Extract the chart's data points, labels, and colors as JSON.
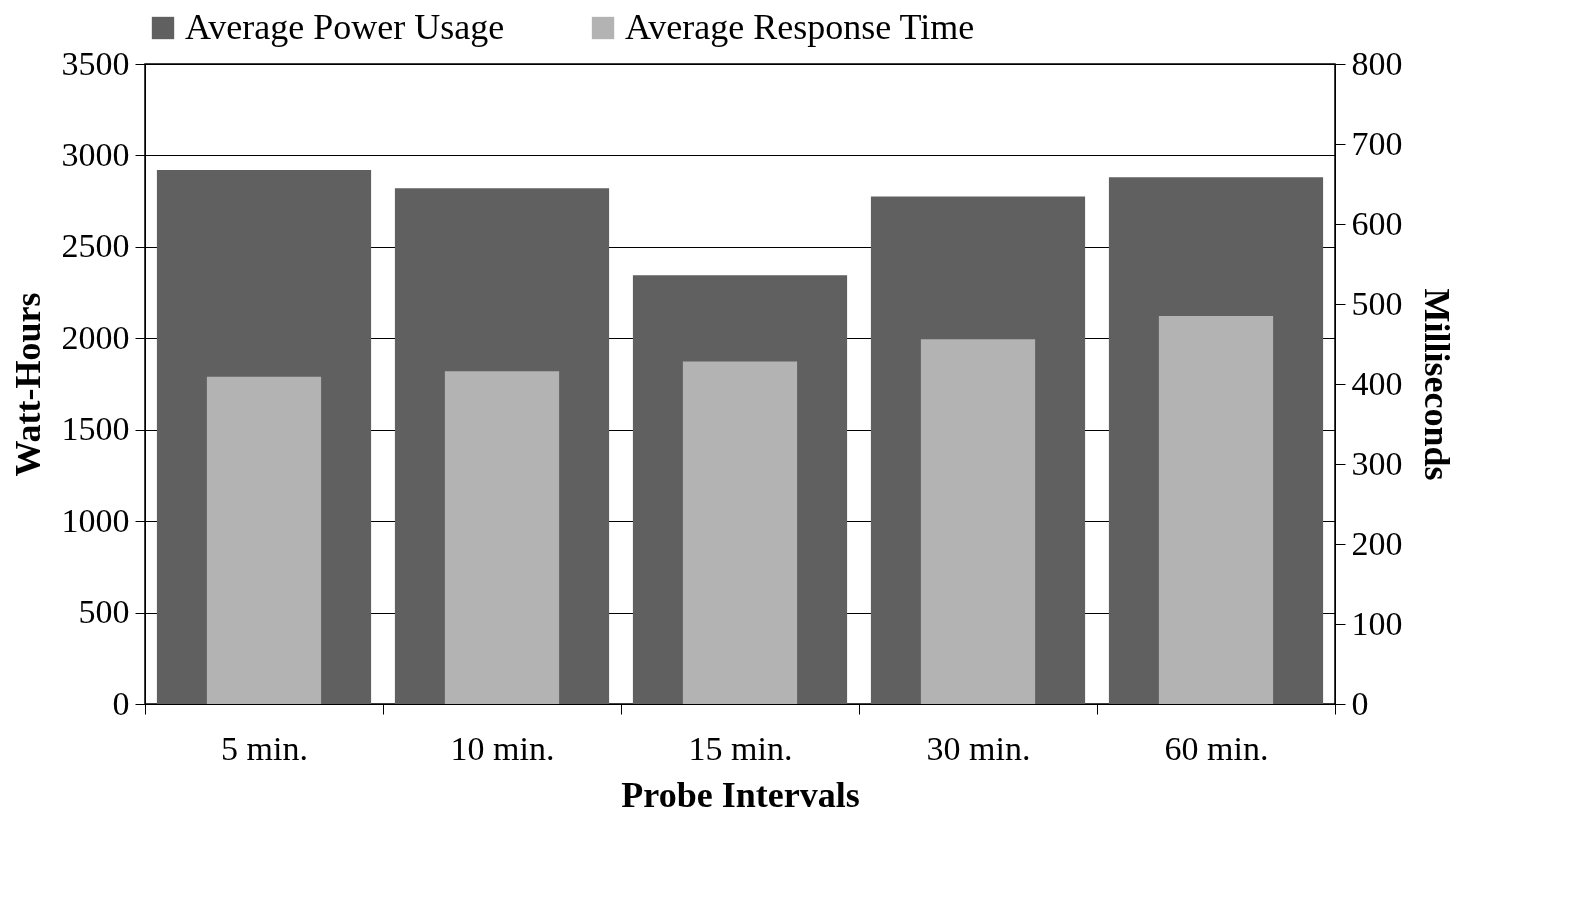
{
  "chart_data": {
    "type": "bar",
    "xlabel": "Probe Intervals",
    "ylabel": "Watt-Hours",
    "y2label": "Milliseconds",
    "categories": [
      "5 min.",
      "10 min.",
      "15 min.",
      "30 min.",
      "60 min."
    ],
    "series": [
      {
        "name": "Average Power Usage",
        "color": "#606060",
        "values": [
          2920,
          2820,
          2345,
          2775,
          2880
        ]
      },
      {
        "name": "Average Response Time",
        "color": "#b3b3b3",
        "values": [
          409,
          416,
          428,
          456,
          485
        ],
        "axis": "y2"
      }
    ],
    "ylim": [
      0,
      3500
    ],
    "yticks": [
      0,
      500,
      1000,
      1500,
      2000,
      2500,
      3000,
      3500
    ],
    "y2lim": [
      0,
      800
    ],
    "y2ticks": [
      0,
      100,
      200,
      300,
      400,
      500,
      600,
      700,
      800
    ],
    "grid": "y",
    "legend": "top"
  }
}
